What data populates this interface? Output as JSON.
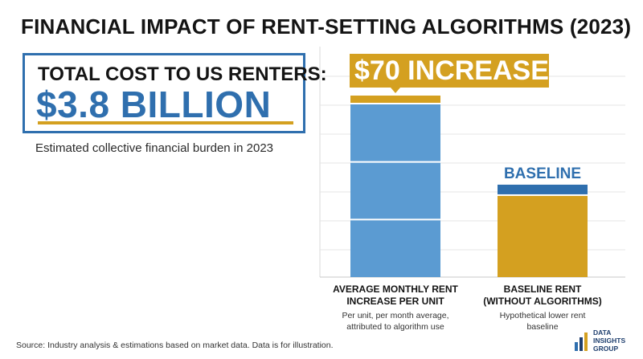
{
  "title": "FINANCIAL IMPACT OF RENT-SETTING ALGORITHMS (2023)",
  "callout": {
    "label": "TOTAL COST TO US RENTERS:",
    "value": "$3.8 BILLION",
    "caption": "Estimated collective financial burden in 2023"
  },
  "chart_data": {
    "type": "bar",
    "categories": [
      "AVERAGE MONTHLY RENT INCREASE PER UNIT",
      "BASELINE RENT (WITHOUT ALGORITHMS)"
    ],
    "bars": [
      {
        "label_lines": [
          "AVERAGE MONTHLY RENT",
          "INCREASE PER UNIT"
        ],
        "sub_lines": [
          "Per unit, per month average,",
          "attributed to algorithm use"
        ],
        "callout": "$70 INCREASE",
        "fill": "#5b9bd2",
        "cap_color": "#d4a020",
        "segments": 3
      },
      {
        "label_lines": [
          "BASELINE RENT",
          "(WITHOUT ALGORITHMS)"
        ],
        "sub_lines": [
          "Hypothetical lower rent",
          "baseline"
        ],
        "callout": "BASELINE",
        "fill": "#d4a020",
        "cap_color": "#2f6fae",
        "segments": 1
      }
    ],
    "relative_heights": [
      1.0,
      0.47
    ],
    "gridlines": true,
    "colors": {
      "blue": "#5b9bd2",
      "dark_blue": "#2f6fae",
      "gold": "#d4a020"
    }
  },
  "source": "Source: Industry analysis & estimations based on market data. Data is for illustration.",
  "logo": {
    "line1": "DATA",
    "line2": "INSIGHTS",
    "line3": "GROUP"
  }
}
